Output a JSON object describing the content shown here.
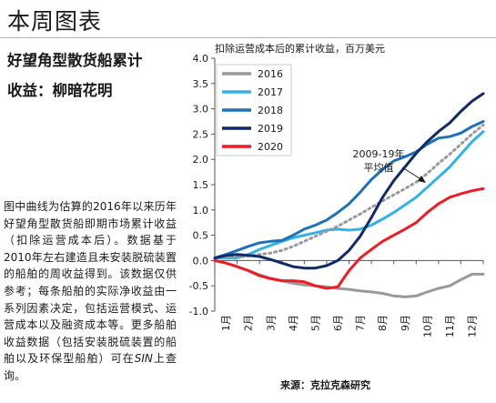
{
  "page_title": "本周图表",
  "chart_heading_line1": "好望角型散货船累计",
  "chart_heading_line2": "收益：柳暗花明",
  "description_before": "图中曲线为估算的2016年以来历年好望角型散货船即期市场累计收益（扣除运营成本后）。数据基于2010年左右建造且未安装脱硫装置的船舶的周收益得到。该数据仅供参考；每条船舶的实际净收益由一系列因素决定，包括运营模式、运营成本以及融资成本等。更多船舶收益数据（包括安装脱硫装置的船舶以及环保型船舶）可在",
  "description_emph": "SIN",
  "description_after": "上查询。",
  "source": "来源：克拉克森研究",
  "colors": {
    "2016": "#999999",
    "2017": "#33b2e8",
    "2018": "#1f72b8",
    "2019": "#0f2a6b",
    "2020": "#ee1c25",
    "average": "#999999"
  },
  "chart_data": {
    "type": "line",
    "title": "扣除运营成本后的累计收益，百万美元",
    "categories": [
      "1月",
      "2月",
      "3月",
      "4月",
      "5月",
      "6月",
      "7月",
      "8月",
      "9月",
      "10月",
      "11月",
      "12月"
    ],
    "ylim": [
      -1.0,
      4.0
    ],
    "yticks": [
      "-1.0",
      "-0.5",
      "0.0",
      "0.5",
      "1.0",
      "1.5",
      "2.0",
      "2.5",
      "3.0",
      "3.5",
      "4.0"
    ],
    "x": [
      0,
      0.5,
      1,
      1.5,
      2,
      2.5,
      3,
      3.5,
      4,
      4.5,
      5,
      5.5,
      6,
      6.5,
      7,
      7.5,
      8,
      8.5,
      9,
      9.5,
      10,
      10.5,
      11,
      11.5,
      12
    ],
    "series": [
      {
        "name": "2016",
        "values": [
          0,
          -0.05,
          -0.12,
          -0.2,
          -0.28,
          -0.35,
          -0.4,
          -0.45,
          -0.48,
          -0.5,
          -0.52,
          -0.55,
          -0.57,
          -0.6,
          -0.62,
          -0.65,
          -0.7,
          -0.72,
          -0.7,
          -0.62,
          -0.55,
          -0.5,
          -0.38,
          -0.27,
          -0.27
        ]
      },
      {
        "name": "2017",
        "values": [
          0.05,
          0.05,
          0.05,
          0.12,
          0.22,
          0.3,
          0.38,
          0.45,
          0.5,
          0.55,
          0.6,
          0.62,
          0.6,
          0.62,
          0.7,
          0.82,
          0.95,
          1.1,
          1.25,
          1.45,
          1.65,
          1.85,
          2.1,
          2.35,
          2.55
        ]
      },
      {
        "name": "2018",
        "values": [
          0.05,
          0.12,
          0.2,
          0.28,
          0.35,
          0.38,
          0.4,
          0.5,
          0.62,
          0.7,
          0.8,
          0.95,
          1.12,
          1.35,
          1.6,
          1.8,
          1.97,
          2.05,
          2.15,
          2.3,
          2.42,
          2.45,
          2.52,
          2.65,
          2.75
        ]
      },
      {
        "name": "2019",
        "values": [
          0.05,
          0.1,
          0.12,
          0.1,
          0.08,
          0.02,
          -0.05,
          -0.12,
          -0.15,
          -0.15,
          -0.1,
          0.0,
          0.2,
          0.48,
          0.85,
          1.25,
          1.58,
          1.85,
          2.12,
          2.35,
          2.55,
          2.72,
          2.95,
          3.15,
          3.3
        ]
      },
      {
        "name": "2020",
        "values": [
          0,
          -0.05,
          -0.12,
          -0.2,
          -0.3,
          -0.36,
          -0.4,
          -0.4,
          -0.42,
          -0.5,
          -0.55,
          -0.52,
          -0.2,
          0.05,
          0.22,
          0.38,
          0.5,
          0.62,
          0.75,
          0.95,
          1.12,
          1.25,
          1.32,
          1.38,
          1.42
        ]
      },
      {
        "name": "2009-19年平均值",
        "values": [
          0.05,
          0.06,
          0.07,
          0.09,
          0.12,
          0.15,
          0.2,
          0.28,
          0.38,
          0.48,
          0.58,
          0.68,
          0.8,
          0.92,
          1.05,
          1.18,
          1.3,
          1.42,
          1.55,
          1.72,
          1.92,
          2.1,
          2.3,
          2.5,
          2.68
        ]
      }
    ],
    "legend": [
      "2016",
      "2017",
      "2018",
      "2019",
      "2020"
    ],
    "legend_position": "top-left",
    "annotation_line1": "2009-19年",
    "annotation_line2": "平均值",
    "grid": false
  }
}
